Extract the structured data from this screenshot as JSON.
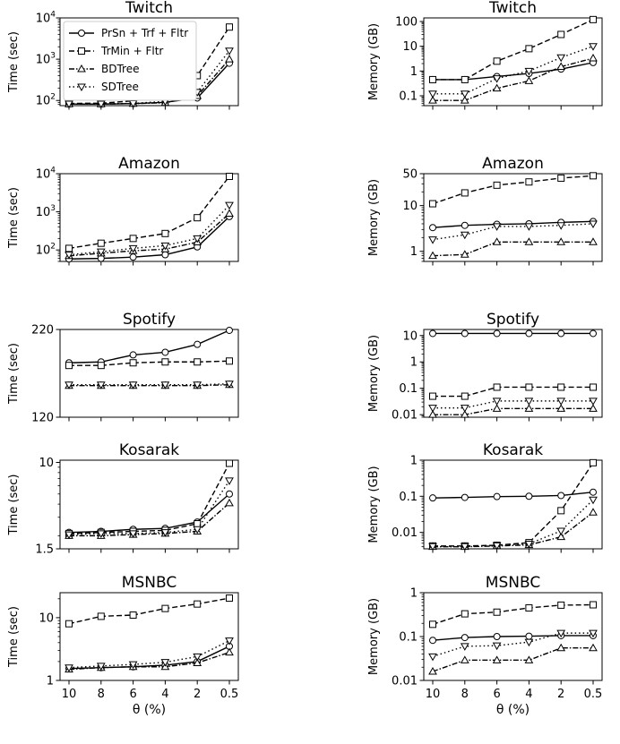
{
  "chart_data": {
    "type": "line",
    "x_categories": [
      "10",
      "8",
      "6",
      "4",
      "2",
      "0.5"
    ],
    "xlabel": "θ (%)",
    "legend": [
      {
        "key": "prsn",
        "label": "PrSn + Trf + Fltr",
        "marker": "circle",
        "dash": "solid"
      },
      {
        "key": "trmin",
        "label": "TrMin + Fltr",
        "marker": "square",
        "dash": "dashed"
      },
      {
        "key": "bdtree",
        "label": "BDTree",
        "marker": "triangle-up",
        "dash": "dashdot"
      },
      {
        "key": "sdtree",
        "label": "SDTree",
        "marker": "triangle-down",
        "dash": "dotted"
      }
    ],
    "panels": [
      {
        "title": "Twitch",
        "ylabel": "Time (sec)",
        "scale": "log",
        "ylim": [
          75,
          10000
        ],
        "yticks": [
          {
            "v": 100,
            "label": "10",
            "exp": "2"
          },
          {
            "v": 1000,
            "label": "10",
            "exp": "3"
          },
          {
            "v": 10000,
            "label": "10",
            "exp": "4"
          }
        ],
        "series": {
          "prsn": [
            82,
            82,
            84,
            90,
            115,
            800
          ],
          "trmin": [
            85,
            86,
            98,
            130,
            400,
            6000
          ],
          "bdtree": [
            82,
            82,
            84,
            88,
            130,
            1000
          ],
          "sdtree": [
            83,
            83,
            85,
            95,
            160,
            1600
          ]
        }
      },
      {
        "title": "Twitch",
        "ylabel": "Memory (GB)",
        "scale": "log",
        "ylim": [
          0.04,
          140
        ],
        "yticks": [
          {
            "v": 0.1,
            "label": "0.1"
          },
          {
            "v": 1,
            "label": "1"
          },
          {
            "v": 10,
            "label": "10"
          },
          {
            "v": 100,
            "label": "100"
          }
        ],
        "series": {
          "prsn": [
            0.45,
            0.45,
            0.6,
            0.8,
            1.2,
            2.2
          ],
          "trmin": [
            0.45,
            0.45,
            2.5,
            8,
            30,
            120
          ],
          "bdtree": [
            0.065,
            0.065,
            0.2,
            0.4,
            1.5,
            3.3
          ],
          "sdtree": [
            0.12,
            0.12,
            0.5,
            1,
            3.5,
            10
          ]
        }
      },
      {
        "title": "Amazon",
        "ylabel": "Time (sec)",
        "scale": "log",
        "ylim": [
          50,
          10000
        ],
        "yticks": [
          {
            "v": 100,
            "label": "10",
            "exp": "2"
          },
          {
            "v": 1000,
            "label": "10",
            "exp": "3"
          },
          {
            "v": 10000,
            "label": "10",
            "exp": "4"
          }
        ],
        "series": {
          "prsn": [
            58,
            60,
            65,
            75,
            120,
            750
          ],
          "trmin": [
            110,
            150,
            200,
            270,
            700,
            8500
          ],
          "bdtree": [
            70,
            82,
            95,
            105,
            160,
            900
          ],
          "sdtree": [
            75,
            90,
            110,
            130,
            200,
            1500
          ]
        }
      },
      {
        "title": "Amazon",
        "ylabel": "Memory (GB)",
        "scale": "log",
        "ylim": [
          0.6,
          50
        ],
        "yticks": [
          {
            "v": 1,
            "label": "1"
          },
          {
            "v": 10,
            "label": "10"
          },
          {
            "v": 50,
            "label": "50"
          }
        ],
        "series": {
          "prsn": [
            3.3,
            3.7,
            3.9,
            4.0,
            4.3,
            4.5
          ],
          "trmin": [
            11,
            19,
            28,
            33,
            40,
            45
          ],
          "bdtree": [
            0.8,
            0.85,
            1.6,
            1.6,
            1.6,
            1.6
          ],
          "sdtree": [
            1.8,
            2.3,
            3.5,
            3.5,
            3.7,
            4.0
          ]
        }
      },
      {
        "title": "Spotify",
        "ylabel": "Time (sec)",
        "scale": "linear",
        "ylim": [
          120,
          220
        ],
        "yticks": [
          {
            "v": 120,
            "label": "120"
          },
          {
            "v": 220,
            "label": "220"
          }
        ],
        "series": {
          "prsn": [
            182,
            183,
            191,
            194,
            203,
            219
          ],
          "trmin": [
            179,
            179,
            182,
            183,
            183,
            184
          ],
          "bdtree": [
            156,
            156,
            156,
            156,
            156,
            157
          ],
          "sdtree": [
            157,
            157,
            157,
            157,
            157,
            158
          ]
        }
      },
      {
        "title": "Spotify",
        "ylabel": "Memory (GB)",
        "scale": "log",
        "ylim": [
          0.008,
          17
        ],
        "yticks": [
          {
            "v": 0.01,
            "label": "0.01"
          },
          {
            "v": 0.1,
            "label": "0.1"
          },
          {
            "v": 1,
            "label": "1"
          },
          {
            "v": 10,
            "label": "10"
          }
        ],
        "series": {
          "prsn": [
            12,
            12,
            12,
            12,
            12,
            12
          ],
          "trmin": [
            0.05,
            0.05,
            0.11,
            0.11,
            0.11,
            0.11
          ],
          "bdtree": [
            0.01,
            0.01,
            0.017,
            0.017,
            0.017,
            0.017
          ],
          "sdtree": [
            0.018,
            0.018,
            0.033,
            0.033,
            0.033,
            0.033
          ]
        }
      },
      {
        "title": "Kosarak",
        "ylabel": "Time (sec)",
        "scale": "log",
        "ylim": [
          1.5,
          10.5
        ],
        "yticks": [
          {
            "v": 1.5,
            "label": "1.5"
          },
          {
            "v": 10,
            "label": "10"
          }
        ],
        "series": {
          "prsn": [
            2.15,
            2.2,
            2.3,
            2.35,
            2.7,
            5.0
          ],
          "trmin": [
            2.1,
            2.15,
            2.2,
            2.25,
            2.6,
            9.8
          ],
          "bdtree": [
            2.0,
            2.0,
            2.05,
            2.1,
            2.2,
            4.1
          ],
          "sdtree": [
            2.05,
            2.1,
            2.1,
            2.15,
            2.3,
            6.7
          ]
        }
      },
      {
        "title": "Kosarak",
        "ylabel": "Memory (GB)",
        "scale": "log",
        "ylim": [
          0.0035,
          1
        ],
        "yticks": [
          {
            "v": 0.01,
            "label": "0.01"
          },
          {
            "v": 0.1,
            "label": "0.1"
          },
          {
            "v": 1,
            "label": "1"
          }
        ],
        "series": {
          "prsn": [
            0.09,
            0.093,
            0.098,
            0.1,
            0.105,
            0.13
          ],
          "trmin": [
            0.0042,
            0.0042,
            0.0044,
            0.0052,
            0.04,
            0.85
          ],
          "bdtree": [
            0.004,
            0.004,
            0.0042,
            0.0045,
            0.0075,
            0.036
          ],
          "sdtree": [
            0.0041,
            0.0041,
            0.0043,
            0.0048,
            0.011,
            0.08
          ]
        }
      },
      {
        "title": "MSNBC",
        "ylabel": "Time (sec)",
        "scale": "log",
        "ylim": [
          1,
          25
        ],
        "yticks": [
          {
            "v": 1,
            "label": "1"
          },
          {
            "v": 10,
            "label": "10"
          }
        ],
        "series": {
          "prsn": [
            1.55,
            1.6,
            1.65,
            1.75,
            2.0,
            3.5
          ],
          "trmin": [
            8,
            10.5,
            11,
            14,
            16.5,
            20.5
          ],
          "bdtree": [
            1.5,
            1.6,
            1.65,
            1.65,
            1.9,
            2.8
          ],
          "sdtree": [
            1.6,
            1.7,
            1.8,
            1.95,
            2.4,
            4.3
          ]
        }
      },
      {
        "title": "MSNBC",
        "ylabel": "Memory (GB)",
        "scale": "log",
        "ylim": [
          0.01,
          1
        ],
        "yticks": [
          {
            "v": 0.01,
            "label": "0.01"
          },
          {
            "v": 0.1,
            "label": "0.1"
          },
          {
            "v": 1,
            "label": "1"
          }
        ],
        "series": {
          "prsn": [
            0.082,
            0.095,
            0.1,
            0.102,
            0.105,
            0.105
          ],
          "trmin": [
            0.19,
            0.33,
            0.36,
            0.45,
            0.52,
            0.53
          ],
          "bdtree": [
            0.016,
            0.029,
            0.029,
            0.029,
            0.055,
            0.055
          ],
          "sdtree": [
            0.035,
            0.06,
            0.062,
            0.075,
            0.12,
            0.12
          ]
        }
      }
    ]
  }
}
